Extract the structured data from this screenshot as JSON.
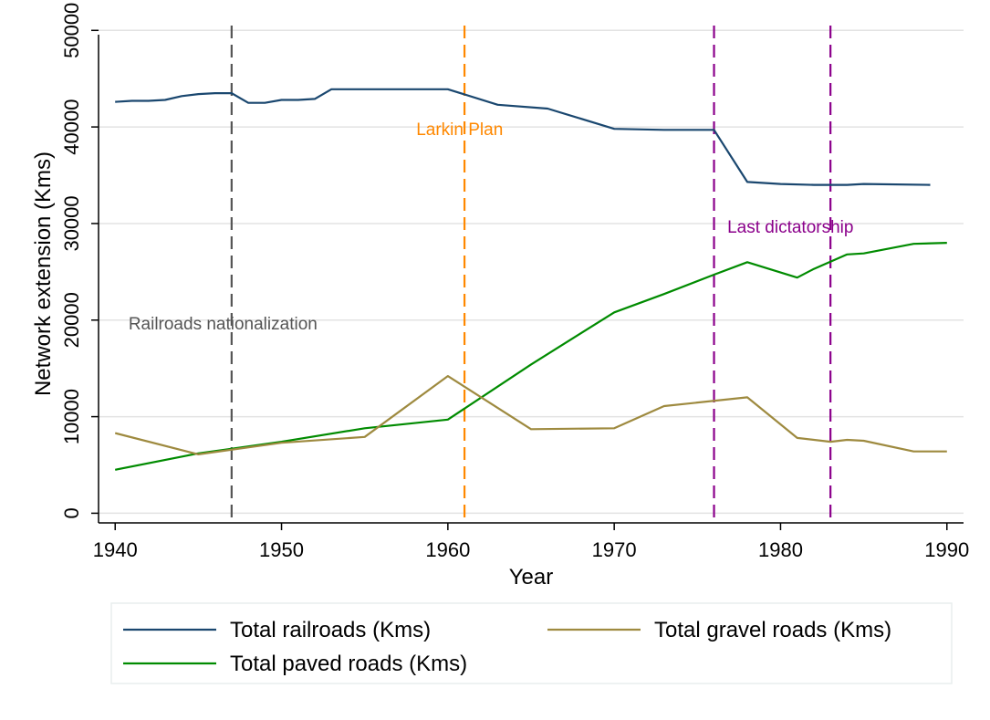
{
  "chart_data": {
    "type": "line",
    "xlabel": "Year",
    "ylabel": "Network extension (Kms)",
    "xlim": [
      1939,
      1991
    ],
    "ylim": [
      -1000,
      50500
    ],
    "xticks": [
      1940,
      1950,
      1960,
      1970,
      1980,
      1990
    ],
    "yticks": [
      0,
      10000,
      20000,
      30000,
      40000,
      50000
    ],
    "grid": "horizontal",
    "legend_position": "bottom",
    "series": [
      {
        "name": "Total railroads (Kms)",
        "color": "#1a476f",
        "points": [
          [
            1940,
            42600
          ],
          [
            1941,
            42700
          ],
          [
            1942,
            42700
          ],
          [
            1943,
            42800
          ],
          [
            1944,
            43200
          ],
          [
            1945,
            43400
          ],
          [
            1946,
            43500
          ],
          [
            1947,
            43500
          ],
          [
            1948,
            42500
          ],
          [
            1949,
            42500
          ],
          [
            1950,
            42800
          ],
          [
            1951,
            42800
          ],
          [
            1952,
            42900
          ],
          [
            1953,
            43900
          ],
          [
            1955,
            43900
          ],
          [
            1957,
            43900
          ],
          [
            1960,
            43900
          ],
          [
            1963,
            42300
          ],
          [
            1966,
            41900
          ],
          [
            1970,
            39800
          ],
          [
            1973,
            39700
          ],
          [
            1976,
            39700
          ],
          [
            1978,
            34300
          ],
          [
            1980,
            34100
          ],
          [
            1982,
            34000
          ],
          [
            1984,
            34000
          ],
          [
            1985,
            34100
          ],
          [
            1989,
            34000
          ]
        ]
      },
      {
        "name": "Total paved roads (Kms)",
        "color": "#008b00",
        "points": [
          [
            1940,
            4500
          ],
          [
            1945,
            6200
          ],
          [
            1950,
            7400
          ],
          [
            1955,
            8800
          ],
          [
            1960,
            9700
          ],
          [
            1965,
            15400
          ],
          [
            1970,
            20800
          ],
          [
            1973,
            22700
          ],
          [
            1976,
            24700
          ],
          [
            1978,
            26000
          ],
          [
            1981,
            24400
          ],
          [
            1982,
            25300
          ],
          [
            1984,
            26800
          ],
          [
            1985,
            26900
          ],
          [
            1988,
            27900
          ],
          [
            1990,
            28000
          ]
        ]
      },
      {
        "name": "Total gravel roads (Kms)",
        "color": "#9e8a3f",
        "points": [
          [
            1940,
            8300
          ],
          [
            1945,
            6100
          ],
          [
            1950,
            7300
          ],
          [
            1955,
            7900
          ],
          [
            1960,
            14200
          ],
          [
            1965,
            8700
          ],
          [
            1970,
            8800
          ],
          [
            1973,
            11100
          ],
          [
            1978,
            12000
          ],
          [
            1981,
            7800
          ],
          [
            1983,
            7400
          ],
          [
            1984,
            7600
          ],
          [
            1985,
            7500
          ],
          [
            1988,
            6400
          ],
          [
            1990,
            6400
          ]
        ]
      }
    ],
    "vlines": [
      {
        "x": 1947,
        "color": "#555555",
        "label": "Railroads nationalization",
        "label_x": 1940.8,
        "label_y": 19700
      },
      {
        "x": 1961,
        "color": "#ff8800",
        "label": "Larkin Plan",
        "label_x": 1958.1,
        "label_y": 39800
      },
      {
        "x": 1976,
        "color": "#8b008b",
        "label": ""
      },
      {
        "x": 1983,
        "color": "#8b008b",
        "label": "Last dictatorship",
        "label_x": 1976.8,
        "label_y": 29700
      }
    ]
  }
}
